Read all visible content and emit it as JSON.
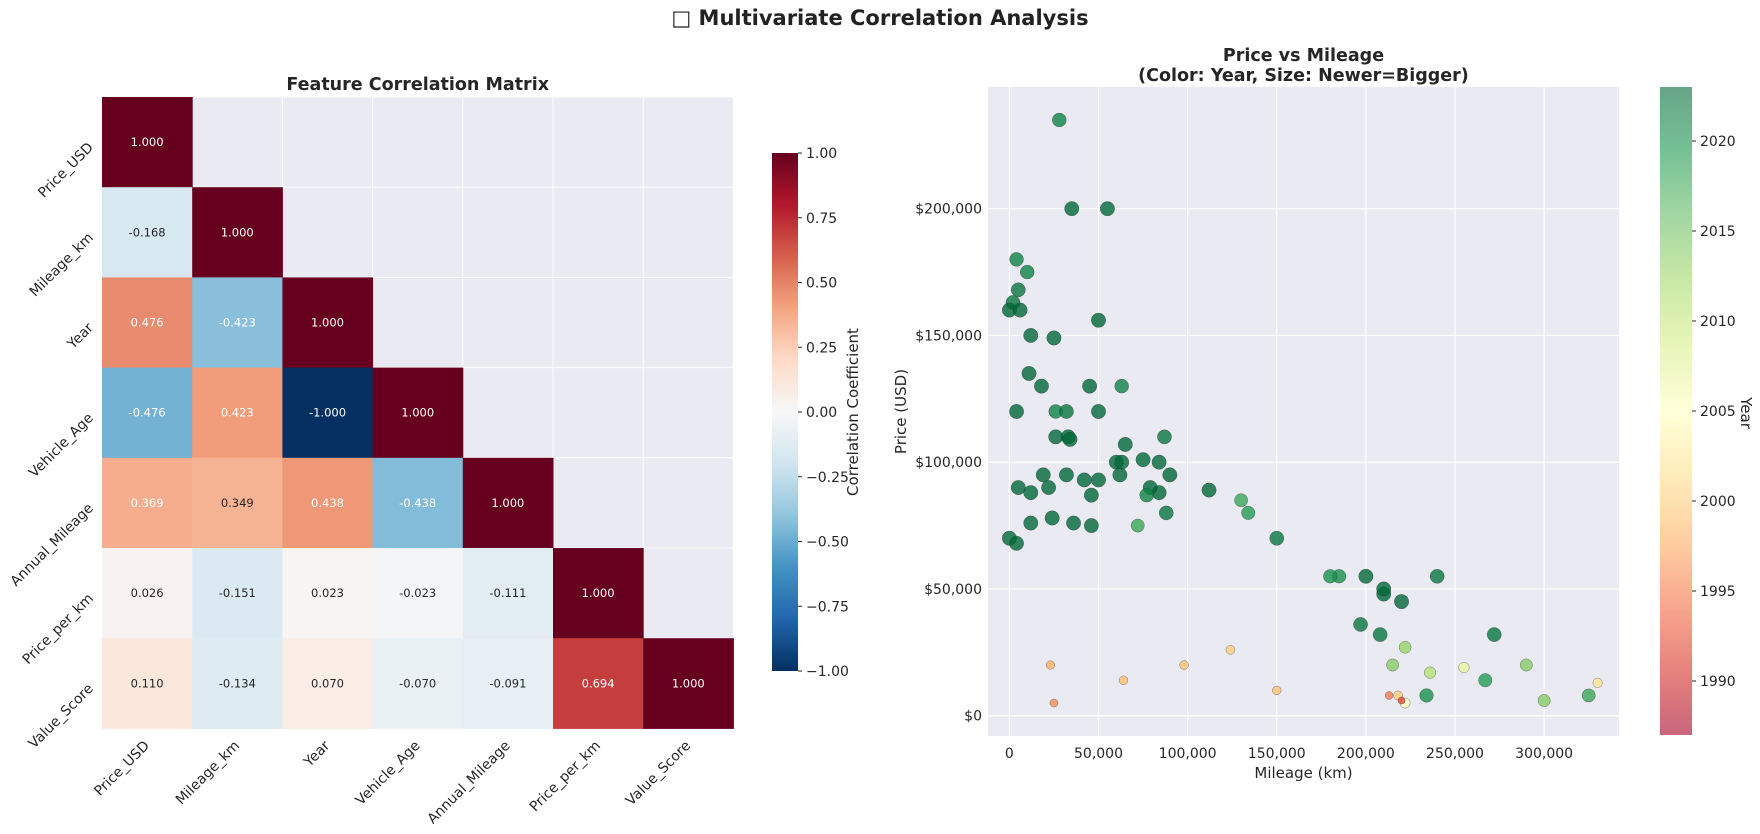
{
  "figure": {
    "suptitle": "□ Multivariate Correlation Analysis"
  },
  "chart_data": [
    {
      "type": "heatmap",
      "title": "Feature Correlation Matrix",
      "labels": [
        "Price_USD",
        "Mileage_km",
        "Year",
        "Vehicle_Age",
        "Annual_Mileage",
        "Price_per_km",
        "Value_Score"
      ],
      "mask": "upper-triangle",
      "values": [
        [
          1.0
        ],
        [
          -0.168,
          1.0
        ],
        [
          0.476,
          -0.423,
          1.0
        ],
        [
          -0.476,
          0.423,
          -1.0,
          1.0
        ],
        [
          0.369,
          0.349,
          0.438,
          -0.438,
          1.0
        ],
        [
          0.026,
          -0.151,
          0.023,
          -0.023,
          -0.111,
          1.0
        ],
        [
          0.11,
          -0.134,
          0.07,
          -0.07,
          -0.091,
          0.694,
          1.0
        ]
      ],
      "colormap": "RdBu_r",
      "colorbar": {
        "label": "Correlation Coefficient",
        "range": [
          -1.0,
          1.0
        ],
        "ticks": [
          "1.00",
          "0.75",
          "0.50",
          "0.25",
          "0.00",
          "−0.25",
          "−0.50",
          "−0.75",
          "−1.00"
        ]
      }
    },
    {
      "type": "scatter",
      "title": "Price vs Mileage",
      "subtitle": "(Color: Year, Size: Newer=Bigger)",
      "xlabel": "Mileage (km)",
      "ylabel": "Price (USD)",
      "xlim": [
        -12000,
        342000
      ],
      "ylim": [
        -8000,
        248000
      ],
      "xticks": [
        0,
        50000,
        100000,
        150000,
        200000,
        250000,
        300000
      ],
      "xtick_labels": [
        "0",
        "50,000",
        "100,000",
        "150,000",
        "200,000",
        "250,000",
        "300,000"
      ],
      "yticks": [
        0,
        50000,
        100000,
        150000,
        200000
      ],
      "ytick_labels": [
        "$0",
        "$50,000",
        "$100,000",
        "$150,000",
        "$200,000"
      ],
      "grid": true,
      "colormap": "RdYlGn",
      "colorbar": {
        "label": "Year",
        "range": [
          1987,
          2023
        ],
        "ticks": [
          "2020",
          "2015",
          "2010",
          "2005",
          "2000",
          "1995",
          "1990"
        ]
      },
      "points": [
        [
          28000,
          235000,
          2021
        ],
        [
          35000,
          200000,
          2023
        ],
        [
          55000,
          200000,
          2023
        ],
        [
          4000,
          180000,
          2021
        ],
        [
          10000,
          175000,
          2021
        ],
        [
          2000,
          163000,
          2022
        ],
        [
          5000,
          168000,
          2022
        ],
        [
          0,
          160000,
          2023
        ],
        [
          6000,
          160000,
          2023
        ],
        [
          50000,
          156000,
          2023
        ],
        [
          12000,
          150000,
          2023
        ],
        [
          25000,
          149000,
          2023
        ],
        [
          11000,
          135000,
          2023
        ],
        [
          18000,
          130000,
          2023
        ],
        [
          45000,
          130000,
          2023
        ],
        [
          63000,
          130000,
          2021
        ],
        [
          26000,
          120000,
          2021
        ],
        [
          32000,
          120000,
          2022
        ],
        [
          4000,
          120000,
          2023
        ],
        [
          50000,
          120000,
          2023
        ],
        [
          26000,
          110000,
          2023
        ],
        [
          33000,
          110000,
          2023
        ],
        [
          34000,
          109000,
          2023
        ],
        [
          87000,
          110000,
          2022
        ],
        [
          65000,
          107000,
          2023
        ],
        [
          60000,
          100000,
          2023
        ],
        [
          63000,
          100000,
          2023
        ],
        [
          84000,
          100000,
          2023
        ],
        [
          75000,
          101000,
          2023
        ],
        [
          62000,
          95000,
          2023
        ],
        [
          90000,
          95000,
          2023
        ],
        [
          19000,
          95000,
          2023
        ],
        [
          32000,
          95000,
          2023
        ],
        [
          42000,
          93000,
          2023
        ],
        [
          50000,
          93000,
          2023
        ],
        [
          5000,
          90000,
          2023
        ],
        [
          12000,
          88000,
          2023
        ],
        [
          22000,
          90000,
          2023
        ],
        [
          46000,
          87000,
          2023
        ],
        [
          79000,
          90000,
          2023
        ],
        [
          112000,
          89000,
          2023
        ],
        [
          84000,
          88000,
          2023
        ],
        [
          77000,
          87000,
          2021
        ],
        [
          130000,
          85000,
          2018
        ],
        [
          134000,
          80000,
          2019
        ],
        [
          88000,
          80000,
          2022
        ],
        [
          0,
          70000,
          2023
        ],
        [
          4000,
          68000,
          2023
        ],
        [
          12000,
          76000,
          2023
        ],
        [
          24000,
          78000,
          2023
        ],
        [
          36000,
          76000,
          2023
        ],
        [
          46000,
          75000,
          2023
        ],
        [
          72000,
          75000,
          2018
        ],
        [
          150000,
          70000,
          2022
        ],
        [
          240000,
          55000,
          2022
        ],
        [
          272000,
          32000,
          2022
        ],
        [
          290000,
          20000,
          2014
        ],
        [
          325000,
          8000,
          2018
        ],
        [
          300000,
          6000,
          2014
        ],
        [
          267000,
          14000,
          2019
        ],
        [
          255000,
          19000,
          2007
        ],
        [
          330000,
          13000,
          2002
        ],
        [
          236000,
          17000,
          2011
        ],
        [
          234000,
          8000,
          2020
        ],
        [
          218000,
          8000,
          2000
        ],
        [
          222000,
          5000,
          2005
        ],
        [
          210000,
          48000,
          2023
        ],
        [
          210000,
          50000,
          2023
        ],
        [
          220000,
          45000,
          2023
        ],
        [
          200000,
          55000,
          2023
        ],
        [
          185000,
          55000,
          2020
        ],
        [
          180000,
          55000,
          2020
        ],
        [
          208000,
          32000,
          2022
        ],
        [
          197000,
          36000,
          2022
        ],
        [
          222000,
          27000,
          2013
        ],
        [
          215000,
          20000,
          2014
        ],
        [
          213000,
          8000,
          1995
        ],
        [
          220000,
          6000,
          1992
        ],
        [
          25000,
          5000,
          1996
        ],
        [
          23000,
          20000,
          1998
        ],
        [
          150000,
          10000,
          1999
        ],
        [
          98000,
          20000,
          1999
        ],
        [
          64000,
          14000,
          1999
        ],
        [
          124000,
          26000,
          2000
        ]
      ]
    }
  ]
}
